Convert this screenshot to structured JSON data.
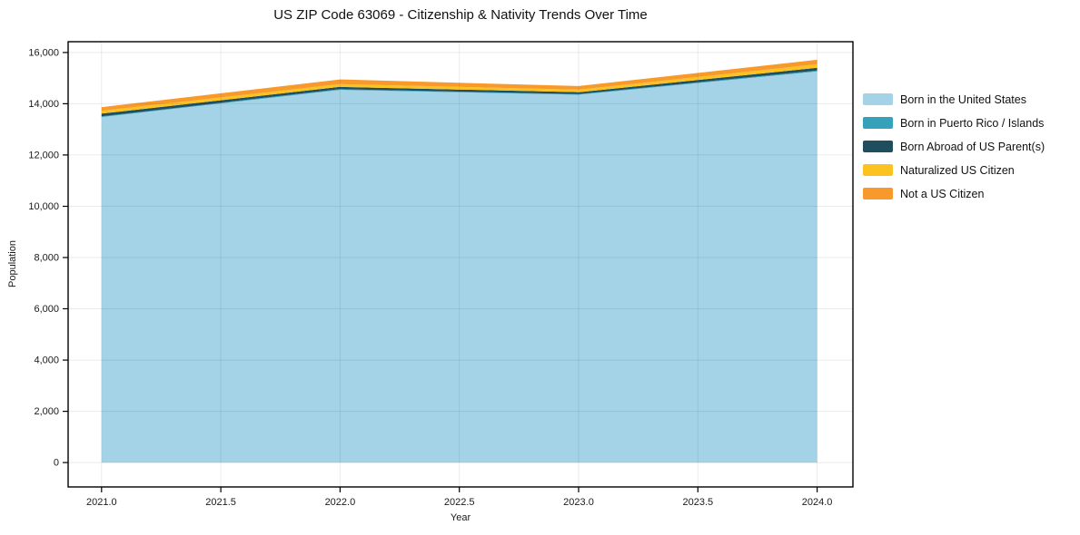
{
  "title": "US ZIP Code 63069 - Citizenship & Nativity Trends Over Time",
  "chart_data": {
    "type": "area",
    "stacked": true,
    "title": "US ZIP Code 63069 - Citizenship & Nativity Trends Over Time",
    "xlabel": "Year",
    "ylabel": "Population",
    "x": [
      2021,
      2022,
      2023,
      2024
    ],
    "series": [
      {
        "name": "Born in the United States",
        "color": "#A4D3E8",
        "values": [
          13480,
          14540,
          14350,
          15260
        ]
      },
      {
        "name": "Born in Puerto Rico / Islands",
        "color": "#35A2B9",
        "values": [
          30,
          30,
          25,
          35
        ]
      },
      {
        "name": "Born Abroad of US Parent(s)",
        "color": "#1F4E5F",
        "values": [
          105,
          90,
          75,
          105
        ]
      },
      {
        "name": "Naturalized US Citizen",
        "color": "#FCC320",
        "values": [
          110,
          105,
          100,
          140
        ]
      },
      {
        "name": "Not a US Citizen",
        "color": "#F8992B",
        "values": [
          140,
          185,
          140,
          175
        ]
      }
    ],
    "xticks": [
      2021.0,
      2021.5,
      2022.0,
      2022.5,
      2023.0,
      2023.5,
      2024.0
    ],
    "yticks": [
      0,
      2000,
      4000,
      6000,
      8000,
      10000,
      12000,
      14000,
      16000
    ],
    "xlim": [
      2020.86,
      2024.15
    ],
    "ylim": [
      -950,
      16420
    ],
    "grid": true,
    "grid_color": "rgba(0,0,0,0.08)",
    "spine_color": "#000000",
    "tick_label_color": "#1a1a1a",
    "legend_position": "right outside"
  }
}
